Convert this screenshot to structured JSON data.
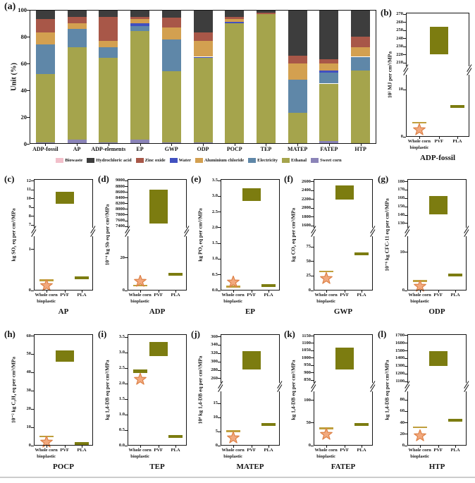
{
  "figure": {
    "background": "#ffffff",
    "colors": {
      "axis": "#141414",
      "olive_box": "#7c7c10",
      "wcb_line": "#bf9f3d",
      "star_fill": "#f2a97e",
      "star_stroke": "#dd8147",
      "bottom_rule": "#cccccc"
    },
    "xcats": {
      "wcb_line1": "Whole corn",
      "wcb_line2": "bioplastic",
      "pvf": "PVF",
      "pla": "PLA"
    }
  },
  "chart_data": [
    {
      "id": "a",
      "type": "bar",
      "stacked": true,
      "label": "(a)",
      "ylabel": "Unit (%)",
      "ylim": [
        0,
        100
      ],
      "yticks": [
        "0",
        "20",
        "40",
        "60",
        "80",
        "100"
      ],
      "categories": [
        "ADP-fossil",
        "AP",
        "ADP-elements",
        "EP",
        "GWP",
        "ODP",
        "POCP",
        "TEP",
        "MATEP",
        "FATEP",
        "HTP"
      ],
      "series": [
        {
          "name": "Sweet corn",
          "color": "#8b84b8",
          "values": [
            1,
            3,
            1,
            3,
            1,
            1,
            0,
            0,
            0,
            2,
            0
          ]
        },
        {
          "name": "Ethanal",
          "color": "#a5a44c",
          "values": [
            51,
            69,
            63,
            81,
            53,
            63,
            90,
            97,
            23,
            43,
            55
          ]
        },
        {
          "name": "Electricity",
          "color": "#5f87a8",
          "values": [
            22,
            14,
            8,
            4,
            24,
            0,
            0,
            0,
            25,
            8,
            10
          ]
        },
        {
          "name": "Water",
          "color": "#4150c0",
          "values": [
            0,
            0,
            0,
            2,
            0,
            1,
            1,
            0,
            0,
            2,
            0
          ]
        },
        {
          "name": "Aluminium chloride",
          "color": "#d3a050",
          "values": [
            9,
            4,
            5,
            3,
            9,
            12,
            2,
            0,
            12,
            5,
            7
          ]
        },
        {
          "name": "Zinc oxide",
          "color": "#a85748",
          "values": [
            10,
            5,
            18,
            2,
            7,
            6,
            2,
            1,
            6,
            3,
            8
          ]
        },
        {
          "name": "Hydrochloric acid",
          "color": "#3d3d3d",
          "values": [
            7,
            5,
            5,
            5,
            6,
            17,
            5,
            2,
            34,
            37,
            20
          ]
        },
        {
          "name": "Biowaste",
          "color": "#f2bfca",
          "values": [
            0,
            0,
            0,
            0,
            0,
            0,
            0,
            0,
            0,
            0,
            0
          ]
        }
      ],
      "legend_position": "bottom",
      "legend": [
        {
          "label": "Biowaste",
          "color": "#f2bfca"
        },
        {
          "label": "Hydrochloric acid",
          "color": "#3d3d3d"
        },
        {
          "label": "Zinc oxide",
          "color": "#a85748"
        },
        {
          "label": "Water",
          "color": "#4150c0"
        },
        {
          "label": "Aluminium chloride",
          "color": "#d3a050"
        },
        {
          "label": "Electricity",
          "color": "#5f87a8"
        },
        {
          "label": "Ethanal",
          "color": "#a5a44c"
        },
        {
          "label": "Sweet corn",
          "color": "#8b84b8"
        }
      ]
    },
    {
      "id": "b",
      "type": "bar",
      "label": "(b)",
      "title": "ADP-fossil",
      "ylabel": "10² MJ per cm³/MPa",
      "broken_axis": true,
      "categories": [
        "Whole corn bioplastic",
        "PVF",
        "PLA"
      ],
      "upper": {
        "range": [
          205,
          272
        ],
        "ticks": [
          "270",
          "260",
          "250",
          "240",
          "230",
          "220",
          "210"
        ]
      },
      "lower": {
        "range": [
          0,
          13
        ],
        "ticks": [
          "10",
          "0"
        ]
      },
      "series": [
        {
          "name": "Whole corn bioplastic",
          "marker": "line",
          "value": 3
        },
        {
          "name": "Whole corn bioplastic",
          "marker": "star",
          "value": 1.7
        },
        {
          "name": "PVF",
          "marker": "box",
          "range": [
            221,
            255
          ]
        },
        {
          "name": "PLA",
          "marker": "bar",
          "value": 6.5
        }
      ]
    },
    {
      "id": "c",
      "type": "bar",
      "label": "(c)",
      "title": "AP",
      "ylabel": "kg SO₂ eq per cm³/MPa",
      "broken_axis": true,
      "categories": [
        "Whole corn bioplastic",
        "PVF",
        "PLA"
      ],
      "upper": {
        "range": [
          6.6,
          12.2
        ],
        "ticks": [
          "12",
          "11",
          "10",
          "9",
          "8",
          "7"
        ]
      },
      "lower": {
        "range": [
          0,
          1.3
        ],
        "ticks": [
          "1",
          "0"
        ]
      },
      "series": [
        {
          "name": "Whole corn bioplastic",
          "marker": "line",
          "value": 0.25
        },
        {
          "name": "Whole corn bioplastic",
          "marker": "star",
          "value": 0.13
        },
        {
          "name": "PVF",
          "marker": "box",
          "range": [
            9.4,
            10.8
          ]
        },
        {
          "name": "PLA",
          "marker": "bar",
          "value": 0.3
        }
      ]
    },
    {
      "id": "d",
      "type": "bar",
      "label": "(d)",
      "title": "ADP",
      "ylabel": "10⁻⁴ kg Sb eq per cm³/MPa",
      "broken_axis": true,
      "categories": [
        "Whole corn bioplastic",
        "PVF",
        "PLA"
      ],
      "upper": {
        "range": [
          7330,
          9060
        ],
        "ticks": [
          "9000",
          "8800",
          "8600",
          "8400",
          "8200",
          "8000",
          "7800",
          "7600",
          "7400"
        ]
      },
      "lower": {
        "range": [
          0,
          33
        ],
        "ticks": [
          "20",
          "0"
        ]
      },
      "series": [
        {
          "name": "Whole corn bioplastic",
          "marker": "line",
          "value": 3
        },
        {
          "name": "Whole corn bioplastic",
          "marker": "star",
          "value": 6
        },
        {
          "name": "PVF",
          "marker": "box",
          "range": [
            7500,
            8700
          ]
        },
        {
          "name": "PLA",
          "marker": "bar",
          "value": 10
        }
      ]
    },
    {
      "id": "e",
      "type": "bar",
      "label": "(e)",
      "title": "EP",
      "ylabel": "kg PO₄ eq per cm³/MPa",
      "broken_axis": false,
      "categories": [
        "Whole corn bioplastic",
        "PVF",
        "PLA"
      ],
      "scale": {
        "range": [
          0,
          3.55
        ],
        "ticks": [
          "3.5",
          "3.0",
          "2.5",
          "2.0",
          "1.5",
          "1.0",
          "0.5",
          "0.0"
        ]
      },
      "series": [
        {
          "name": "Whole corn bioplastic",
          "marker": "line",
          "value": 0.12
        },
        {
          "name": "Whole corn bioplastic",
          "marker": "star",
          "value": 0.3
        },
        {
          "name": "PVF",
          "marker": "box",
          "range": [
            2.85,
            3.25
          ]
        },
        {
          "name": "PLA",
          "marker": "bar",
          "value": 0.15
        }
      ]
    },
    {
      "id": "f",
      "type": "bar",
      "label": "(f)",
      "title": "GWP",
      "ylabel": "kg CO₂ eq per cm³/MPa",
      "broken_axis": true,
      "categories": [
        "Whole corn bioplastic",
        "PVF",
        "PLA"
      ],
      "upper": {
        "range": [
          1540,
          2660
        ],
        "ticks": [
          "2600",
          "2400",
          "2200",
          "2000",
          "1800",
          "1600"
        ]
      },
      "lower": {
        "range": [
          0,
          92
        ],
        "ticks": [
          "75",
          "50",
          "25",
          "0"
        ]
      },
      "series": [
        {
          "name": "Whole corn bioplastic",
          "marker": "line",
          "value": 33
        },
        {
          "name": "Whole corn bioplastic",
          "marker": "star",
          "value": 22
        },
        {
          "name": "PVF",
          "marker": "box",
          "range": [
            2190,
            2520
          ]
        },
        {
          "name": "PLA",
          "marker": "bar",
          "value": 63
        }
      ]
    },
    {
      "id": "g",
      "type": "bar",
      "label": "(g)",
      "title": "ODP",
      "ylabel": "10⁻⁶ kg CFC-11 eq per cm³/MPa",
      "broken_axis": true,
      "categories": [
        "Whole corn bioplastic",
        "PVF",
        "PLA"
      ],
      "upper": {
        "range": [
          124,
          183
        ],
        "ticks": [
          "180",
          "170",
          "160",
          "150",
          "140",
          "130"
        ]
      },
      "lower": {
        "range": [
          0,
          14
        ],
        "ticks": [
          "10",
          "0"
        ]
      },
      "series": [
        {
          "name": "Whole corn bioplastic",
          "marker": "line",
          "value": 2.5
        },
        {
          "name": "Whole corn bioplastic",
          "marker": "star",
          "value": 1.3
        },
        {
          "name": "PVF",
          "marker": "box",
          "range": [
            141,
            163
          ]
        },
        {
          "name": "PLA",
          "marker": "bar",
          "value": 4
        }
      ]
    },
    {
      "id": "h",
      "type": "bar",
      "label": "(h)",
      "title": "POCP",
      "ylabel": "10⁻² kg C₂H₄ eq per cm³/MPa",
      "broken_axis": false,
      "categories": [
        "Whole corn bioplastic",
        "PVF",
        "PLA"
      ],
      "scale": {
        "range": [
          0,
          61
        ],
        "ticks": [
          "60",
          "50",
          "40",
          "30",
          "20",
          "10",
          "0"
        ]
      },
      "series": [
        {
          "name": "Whole corn bioplastic",
          "marker": "line",
          "value": 5
        },
        {
          "name": "Whole corn bioplastic",
          "marker": "star",
          "value": 2.5
        },
        {
          "name": "PVF",
          "marker": "box",
          "range": [
            46,
            52
          ]
        },
        {
          "name": "PLA",
          "marker": "bar",
          "value": 1
        }
      ]
    },
    {
      "id": "i",
      "type": "bar",
      "label": "(i)",
      "title": "TEP",
      "ylabel": "kg 1,4-DB eq per cm³/MPa",
      "broken_axis": false,
      "wcb_thick": true,
      "categories": [
        "Whole corn bioplastic",
        "PVF",
        "PLA"
      ],
      "scale": {
        "range": [
          0,
          3.6
        ],
        "ticks": [
          "3.5",
          "3.0",
          "2.5",
          "2.0",
          "1.5",
          "1.0",
          "0.5",
          "0.0"
        ]
      },
      "series": [
        {
          "name": "Whole corn bioplastic",
          "marker": "line",
          "value": 2.4
        },
        {
          "name": "Whole corn bioplastic",
          "marker": "star",
          "value": 2.17
        },
        {
          "name": "PVF",
          "marker": "box",
          "range": [
            2.9,
            3.35
          ]
        },
        {
          "name": "PLA",
          "marker": "bar",
          "value": 0.3
        }
      ]
    },
    {
      "id": "j",
      "type": "bar",
      "label": "(j)",
      "title": "MATEP",
      "ylabel": "10⁴ kg 1,4-DB eq per cm³/MPa",
      "broken_axis": true,
      "categories": [
        "Whole corn bioplastic",
        "PVF",
        "PLA"
      ],
      "upper": {
        "range": [
          248,
          366
        ],
        "ticks": [
          "360",
          "340",
          "320",
          "300",
          "280",
          "260"
        ]
      },
      "lower": {
        "range": [
          0,
          19
        ],
        "ticks": [
          "15",
          "10",
          "5",
          "0"
        ]
      },
      "series": [
        {
          "name": "Whole corn bioplastic",
          "marker": "line",
          "value": 5.2
        },
        {
          "name": "Whole corn bioplastic",
          "marker": "star",
          "value": 3
        },
        {
          "name": "PVF",
          "marker": "box",
          "range": [
            281,
            325
          ]
        },
        {
          "name": "PLA",
          "marker": "bar",
          "value": 7.5
        }
      ]
    },
    {
      "id": "k",
      "type": "bar",
      "label": "(k)",
      "title": "FATEP",
      "ylabel": "kg 1,4-DB eq per cm³/MPa",
      "broken_axis": true,
      "categories": [
        "Whole corn bioplastic",
        "PVF",
        "PLA"
      ],
      "upper": {
        "range": [
          828,
          1162
        ],
        "ticks": [
          "1150",
          "1100",
          "1050",
          "1000",
          "950",
          "900",
          "850"
        ]
      },
      "lower": {
        "range": [
          0,
          118
        ],
        "ticks": [
          "100",
          "50",
          "0"
        ]
      },
      "series": [
        {
          "name": "Whole corn bioplastic",
          "marker": "line",
          "value": 38
        },
        {
          "name": "Whole corn bioplastic",
          "marker": "star",
          "value": 27
        },
        {
          "name": "PVF",
          "marker": "box",
          "range": [
            925,
            1070
          ]
        },
        {
          "name": "PLA",
          "marker": "bar",
          "value": 46
        }
      ]
    },
    {
      "id": "l",
      "type": "bar",
      "label": "(l)",
      "title": "HTP",
      "ylabel": "kg 1,4-DB eq per cm³/MPa",
      "broken_axis": true,
      "categories": [
        "Whole corn bioplastic",
        "PVF",
        "PLA"
      ],
      "upper": {
        "range": [
          1075,
          1715
        ],
        "ticks": [
          "1700",
          "1600",
          "1500",
          "1400",
          "1300",
          "1200",
          "1100"
        ]
      },
      "lower": {
        "range": [
          0,
          94
        ],
        "ticks": [
          "80",
          "60",
          "40",
          "20",
          "0"
        ]
      },
      "series": [
        {
          "name": "Whole corn bioplastic",
          "marker": "line",
          "value": 32
        },
        {
          "name": "Whole corn bioplastic",
          "marker": "star",
          "value": 18
        },
        {
          "name": "PVF",
          "marker": "box",
          "range": [
            1300,
            1500
          ]
        },
        {
          "name": "PLA",
          "marker": "bar",
          "value": 44
        }
      ]
    }
  ]
}
